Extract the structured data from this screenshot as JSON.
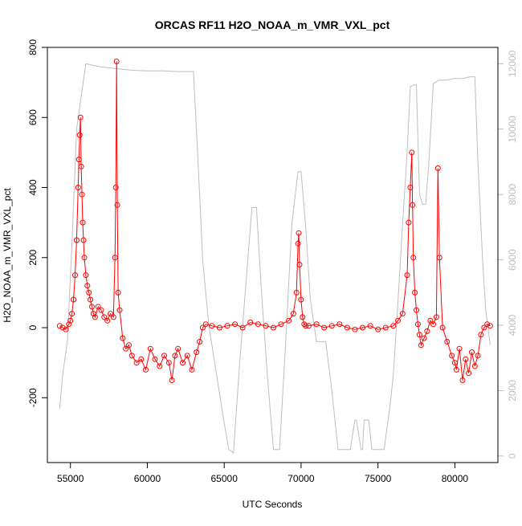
{
  "chart_data": {
    "type": "scatter",
    "title": "ORCAS RF11 H2O_NOAA_m_VMR_VXL_pct",
    "xlabel": "UTC Seconds",
    "ylabel": "H2O_NOAA_m_VMR_VXL_pct",
    "xlim": [
      53500,
      82800
    ],
    "ylim": [
      -385,
      800
    ],
    "y2lim": [
      -200,
      12500
    ],
    "x_ticks": [
      55000,
      60000,
      65000,
      70000,
      75000,
      80000
    ],
    "y_ticks": [
      -200,
      0,
      200,
      400,
      600,
      800
    ],
    "y2_ticks": [
      0,
      2000,
      4000,
      6000,
      8000,
      10000,
      12000
    ],
    "grid": false,
    "colors": {
      "primary": "#ff0000",
      "secondary": "#bebebe",
      "axis": "#000000",
      "axis2": "#bebebe"
    },
    "series": [
      {
        "axis": "left",
        "style": "points-lines",
        "x": [
          54300,
          54500,
          54700,
          54900,
          55000,
          55100,
          55200,
          55300,
          55400,
          55500,
          55550,
          55600,
          55650,
          55700,
          55750,
          55800,
          55850,
          55900,
          56000,
          56100,
          56200,
          56300,
          56400,
          56500,
          56600,
          56800,
          57000,
          57200,
          57400,
          57600,
          57800,
          57900,
          57950,
          58000,
          58050,
          58100,
          58200,
          58400,
          58600,
          58800,
          59000,
          59300,
          59600,
          59900,
          60200,
          60500,
          60800,
          61100,
          61400,
          61600,
          61800,
          62000,
          62300,
          62600,
          62900,
          63200,
          63400,
          63600,
          63800,
          64200,
          64700,
          65200,
          65700,
          66200,
          66700,
          67200,
          67700,
          68200,
          68700,
          69200,
          69500,
          69700,
          69800,
          69850,
          69900,
          70000,
          70100,
          70200,
          70300,
          70500,
          71000,
          71500,
          72000,
          72500,
          73000,
          73500,
          74000,
          74500,
          75000,
          75500,
          76000,
          76300,
          76600,
          76900,
          77000,
          77100,
          77200,
          77250,
          77300,
          77400,
          77500,
          77600,
          77700,
          77800,
          78000,
          78200,
          78400,
          78600,
          78800,
          78900,
          79000,
          79200,
          79500,
          79800,
          80000,
          80100,
          80300,
          80500,
          80700,
          80900,
          81100,
          81300,
          81500,
          81700,
          81900,
          82100,
          82300
        ],
        "y": [
          5,
          0,
          -5,
          10,
          20,
          40,
          80,
          150,
          250,
          400,
          480,
          550,
          600,
          460,
          380,
          300,
          250,
          200,
          150,
          120,
          100,
          80,
          60,
          40,
          30,
          60,
          50,
          30,
          20,
          40,
          30,
          200,
          400,
          760,
          350,
          100,
          50,
          -30,
          -60,
          -50,
          -80,
          -100,
          -90,
          -120,
          -60,
          -90,
          -110,
          -80,
          -100,
          -150,
          -80,
          -60,
          -100,
          -80,
          -120,
          -70,
          -40,
          0,
          10,
          5,
          0,
          5,
          10,
          0,
          15,
          10,
          5,
          0,
          10,
          20,
          40,
          100,
          240,
          270,
          180,
          80,
          30,
          10,
          5,
          5,
          10,
          0,
          5,
          10,
          0,
          -5,
          0,
          5,
          -5,
          0,
          5,
          20,
          40,
          150,
          300,
          400,
          500,
          350,
          200,
          100,
          50,
          10,
          -20,
          -50,
          -30,
          -10,
          20,
          10,
          30,
          455,
          200,
          0,
          -40,
          -80,
          -100,
          -120,
          -60,
          -150,
          -90,
          -130,
          -70,
          -110,
          -80,
          -20,
          0,
          10,
          5
        ]
      },
      {
        "axis": "right",
        "style": "line",
        "x": [
          54300,
          54500,
          54800,
          55100,
          55400,
          55700,
          56000,
          56500,
          57000,
          58000,
          59000,
          60000,
          61000,
          62000,
          63000,
          63300,
          63600,
          64000,
          64500,
          65000,
          65300,
          65600,
          66000,
          66500,
          66800,
          67100,
          67400,
          67800,
          68200,
          68600,
          69000,
          69400,
          69800,
          70000,
          70300,
          70600,
          71000,
          71400,
          71600,
          72000,
          72400,
          72800,
          73200,
          73500,
          73600,
          73900,
          74000,
          74100,
          74400,
          74600,
          75000,
          75400,
          75800,
          76000,
          76300,
          76600,
          76900,
          77100,
          77300,
          77500,
          77700,
          77900,
          78100,
          78300,
          78600,
          78800,
          79000,
          79500,
          80000,
          80500,
          81000,
          81300,
          81500,
          81800,
          82000,
          82300
        ],
        "y": [
          1450,
          2500,
          3500,
          6500,
          10000,
          11000,
          12000,
          11950,
          11900,
          11850,
          11800,
          11780,
          11780,
          11760,
          11760,
          9000,
          6000,
          4000,
          2500,
          1000,
          200,
          100,
          2800,
          5800,
          7600,
          7600,
          5200,
          2500,
          200,
          200,
          3500,
          7100,
          8700,
          8700,
          7000,
          4800,
          3500,
          3500,
          3500,
          2000,
          200,
          200,
          200,
          1100,
          1100,
          200,
          200,
          1100,
          1100,
          200,
          200,
          200,
          1600,
          2500,
          4700,
          7100,
          9300,
          11300,
          11350,
          11350,
          8000,
          7700,
          7700,
          8900,
          11400,
          11450,
          11500,
          11500,
          11550,
          11550,
          11600,
          11600,
          9000,
          6000,
          4500,
          3400
        ]
      }
    ]
  }
}
